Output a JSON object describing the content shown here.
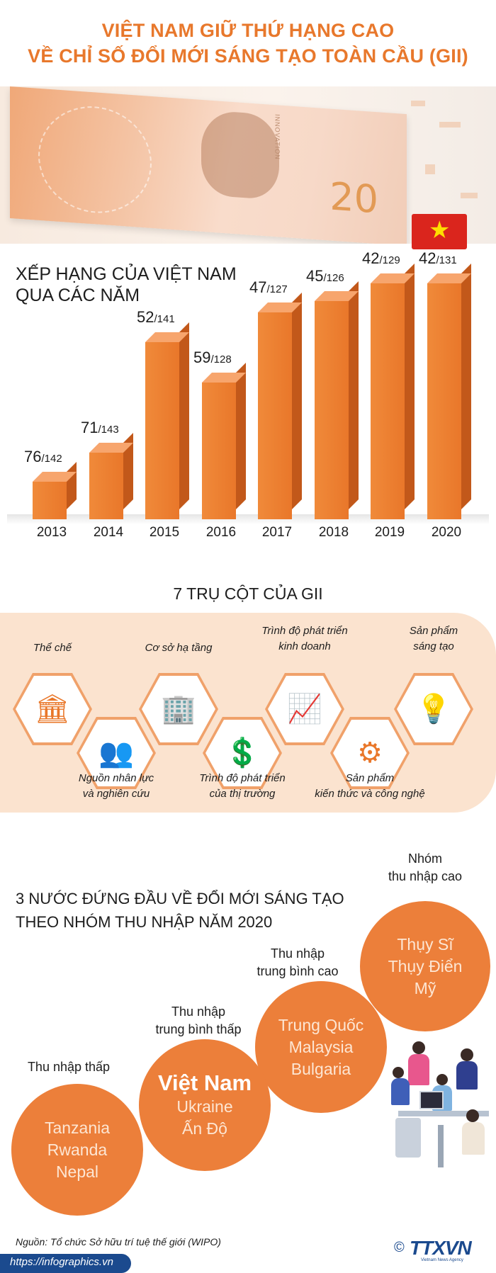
{
  "header": {
    "title_line1": "VIỆT NAM GIỮ THỨ HẠNG CAO",
    "title_line2": "VỀ CHỈ SỐ ĐỔI MỚI SÁNG TẠO TOÀN CẦU (GII)"
  },
  "banner": {
    "bill_number": "20",
    "bill_text": "INNOVATION"
  },
  "flag": {
    "star": "★"
  },
  "chart_data": {
    "type": "bar",
    "title_line1": "XẾP HẠNG CỦA VIỆT NAM",
    "title_line2": "QUA CÁC NĂM",
    "categories": [
      "2013",
      "2014",
      "2015",
      "2016",
      "2017",
      "2018",
      "2019",
      "2020"
    ],
    "values": [
      76,
      71,
      52,
      59,
      47,
      45,
      42,
      42
    ],
    "totals": [
      142,
      143,
      141,
      128,
      127,
      126,
      129,
      131
    ],
    "rank_labels": [
      "76",
      "71",
      "52",
      "59",
      "47",
      "45",
      "42",
      "42"
    ],
    "total_labels": [
      "/142",
      "/143",
      "/141",
      "/128",
      "/127",
      "/126",
      "/129",
      "/131"
    ],
    "inverted_axis": true,
    "colors": {
      "bar": "#e9772a",
      "bar_top": "#f7a56d",
      "bar_side": "#c2581a"
    }
  },
  "pillars": {
    "title": "7 TRỤ CỘT CỦA GII",
    "items": [
      {
        "label_line1": "Thể chế",
        "label_line2": "",
        "icon": "government-building-icon",
        "glyph": "🏛"
      },
      {
        "label_line1": "Nguồn nhân lực",
        "label_line2": "và nghiên cứu",
        "icon": "people-group-icon",
        "glyph": "👥"
      },
      {
        "label_line1": "Cơ sở hạ tầng",
        "label_line2": "",
        "icon": "city-buildings-icon",
        "glyph": "🏢"
      },
      {
        "label_line1": "Trình độ phát triển",
        "label_line2": "của thị trường",
        "icon": "market-finance-icon",
        "glyph": "💲"
      },
      {
        "label_line1": "Trình độ phát triển",
        "label_line2": "kinh doanh",
        "icon": "business-growth-icon",
        "glyph": "📈"
      },
      {
        "label_line1": "Sản phẩm",
        "label_line2": "kiến thức và công nghệ",
        "icon": "gear-technology-icon",
        "glyph": "⚙"
      },
      {
        "label_line1": "Sản phẩm",
        "label_line2": "sáng tạo",
        "icon": "brain-bulb-icon",
        "glyph": "💡"
      }
    ]
  },
  "top3": {
    "title_line1": "3 NƯỚC ĐỨNG ĐẦU VỀ ĐỔI MỚI SÁNG TẠO",
    "title_line2": "THEO NHÓM THU NHẬP NĂM 2020",
    "groups": [
      {
        "label_line1": "Thu nhập thấp",
        "label_line2": "",
        "countries": [
          "Tanzania",
          "Rwanda",
          "Nepal"
        ]
      },
      {
        "label_line1": "Thu nhập",
        "label_line2": "trung bình thấp",
        "countries": [
          "Việt Nam",
          "Ukraine",
          "Ấn Độ"
        ]
      },
      {
        "label_line1": "Thu nhập",
        "label_line2": "trung bình cao",
        "countries": [
          "Trung Quốc",
          "Malaysia",
          "Bulgaria"
        ]
      },
      {
        "label_line1": "Nhóm",
        "label_line2": "thu nhập cao",
        "countries": [
          "Thụy Sĩ",
          "Thụy Điển",
          "Mỹ"
        ]
      }
    ]
  },
  "footer": {
    "source": "Nguồn: Tổ chức Sở hữu trí tuệ thế giới (WIPO)",
    "url": "https://infographics.vn",
    "logo_text": "TTXVN",
    "logo_copyright": "©",
    "logo_sub": "Vietnam News Agency"
  }
}
